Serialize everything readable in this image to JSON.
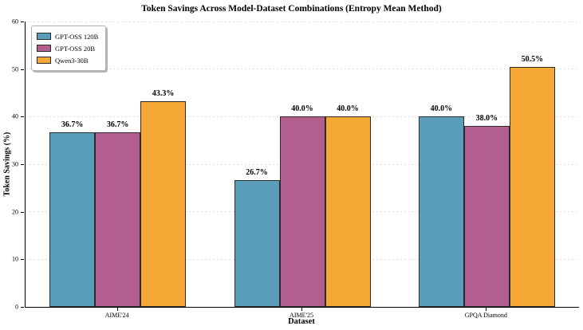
{
  "chart_data": {
    "type": "bar",
    "title": "Token Savings Across Model-Dataset Combinations (Entropy Mean Method)",
    "xlabel": "Dataset",
    "ylabel": "Token Savings (%)",
    "categories": [
      "AIME'24",
      "AIME'25",
      "GPQA Diamond"
    ],
    "series": [
      {
        "name": "GPT-OSS 120B",
        "color": "#5a9ebc",
        "values": [
          36.7,
          26.7,
          40.0
        ]
      },
      {
        "name": "GPT-OSS 20B",
        "color": "#b25f90",
        "values": [
          36.7,
          40.0,
          38.0
        ]
      },
      {
        "name": "Qwen3-30B",
        "color": "#f6a836",
        "values": [
          43.3,
          40.0,
          50.5
        ]
      }
    ],
    "value_labels": [
      [
        "36.7%",
        "26.7%",
        "40.0%"
      ],
      [
        "36.7%",
        "40.0%",
        "38.0%"
      ],
      [
        "43.3%",
        "40.0%",
        "50.5%"
      ]
    ],
    "ylim": [
      0,
      60
    ],
    "yticks": [
      0,
      10,
      20,
      30,
      40,
      50,
      60
    ],
    "grid": "horizontal-dashed",
    "gridline_color": "#dddddd",
    "bar_edge_color": "#2b2b2b",
    "legend_position": "upper-left",
    "background_color": "#ffffff"
  }
}
